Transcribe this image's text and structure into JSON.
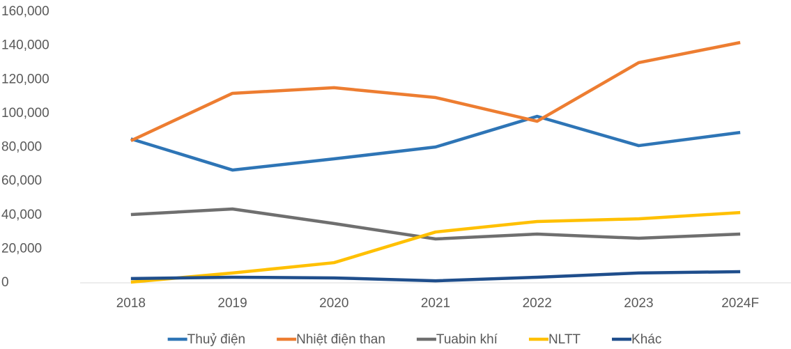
{
  "chart_data": {
    "type": "line",
    "categories": [
      "2018",
      "2019",
      "2020",
      "2021",
      "2022",
      "2023",
      "2024F"
    ],
    "series": [
      {
        "name": "Thuỷ điện",
        "color": "#2e75b6",
        "values": [
          85000,
          66600,
          73200,
          80200,
          98300,
          81000,
          88800
        ]
      },
      {
        "name": "Nhiệt điện than",
        "color": "#ed7d31",
        "values": [
          83900,
          111900,
          115200,
          109400,
          95400,
          130000,
          141900
        ]
      },
      {
        "name": "Tuabin khí",
        "color": "#6f6f6f",
        "values": [
          40300,
          43600,
          35000,
          25900,
          28800,
          26300,
          28800
        ]
      },
      {
        "name": "NLTT",
        "color": "#ffc000",
        "values": [
          400,
          5800,
          11900,
          30000,
          36200,
          37800,
          41500
        ]
      },
      {
        "name": "Khác",
        "color": "#1f4e8c",
        "values": [
          2500,
          3300,
          2900,
          1200,
          3300,
          5800,
          6600
        ]
      }
    ],
    "ylim": [
      0,
      160000
    ],
    "yticks": [
      0,
      {
        "value": 20000,
        "label": "20,000"
      },
      {
        "value": 40000,
        "label": "40,000"
      },
      {
        "value": 60000,
        "label": "60,000"
      },
      {
        "value": 80000,
        "label": "80,000"
      },
      {
        "value": 100000,
        "label": "100,000"
      },
      {
        "value": 120000,
        "label": "120,000"
      },
      {
        "value": 140000,
        "label": "140,000"
      },
      {
        "value": 160000,
        "label": "160,000"
      }
    ],
    "grid": false,
    "legend": "bottom"
  }
}
